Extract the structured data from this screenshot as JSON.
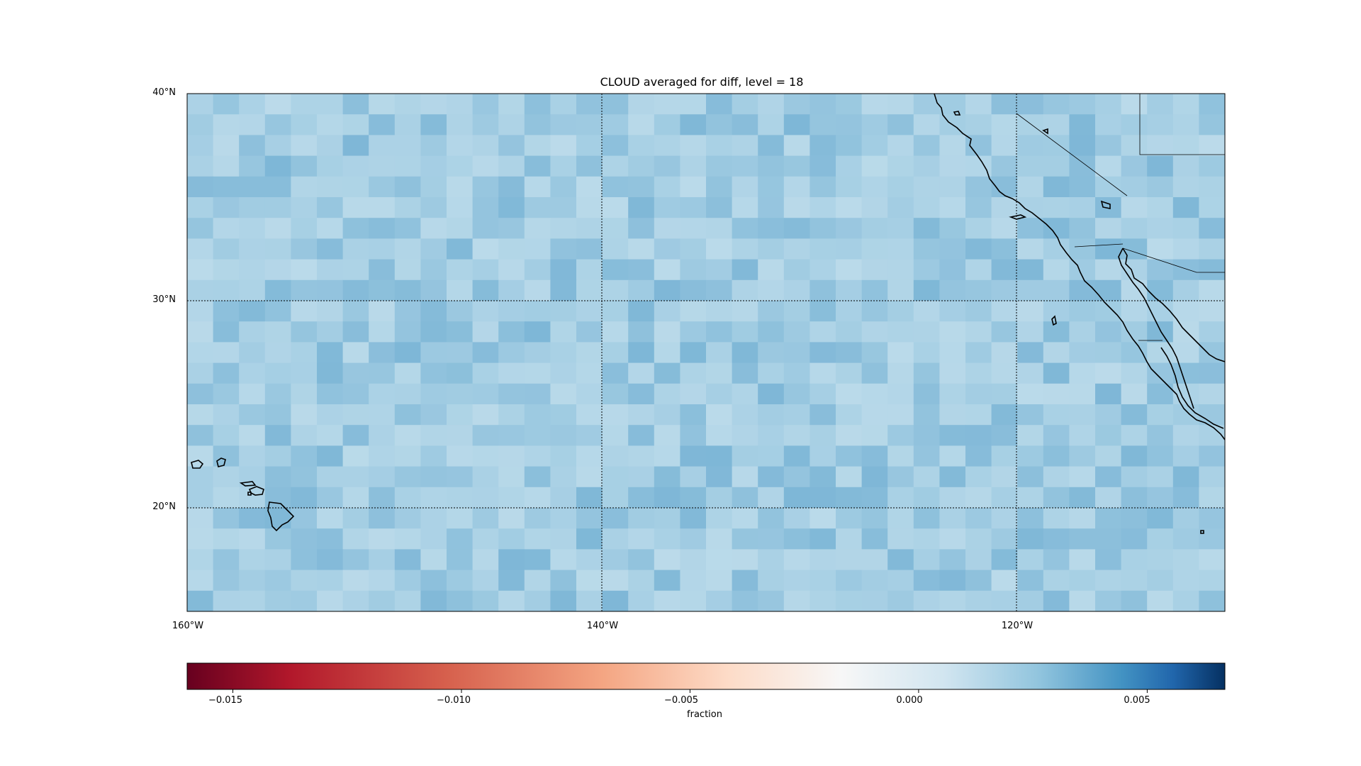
{
  "title": "CLOUD averaged for diff, level = 18",
  "axes": {
    "lat_labels": [
      "40°N",
      "30°N",
      "20°N"
    ],
    "lon_labels": [
      "160°W",
      "140°W",
      "120°W"
    ]
  },
  "colorbar": {
    "label": "fraction",
    "ticks": [
      "−0.015",
      "−0.010",
      "−0.005",
      "0.000",
      "0.005"
    ],
    "range": [
      -0.016,
      0.0067
    ],
    "colormap": "RdBu"
  },
  "colors": {
    "field_base": "#a6cfe4",
    "coastline": "#000000",
    "gridline": "#000000"
  },
  "chart_data": {
    "type": "heatmap",
    "title": "CLOUD averaged for diff, level = 18",
    "xlabel": "",
    "ylabel": "",
    "x_range": [
      -160,
      -110
    ],
    "y_range": [
      15,
      40
    ],
    "colorbar_label": "fraction",
    "colorbar_ticks": [
      -0.015,
      -0.01,
      -0.005,
      0.0,
      0.005
    ],
    "value_range": [
      -0.016,
      0.0067
    ],
    "typical_value": 0.0005,
    "grid": true,
    "projection": "PlateCarree"
  }
}
